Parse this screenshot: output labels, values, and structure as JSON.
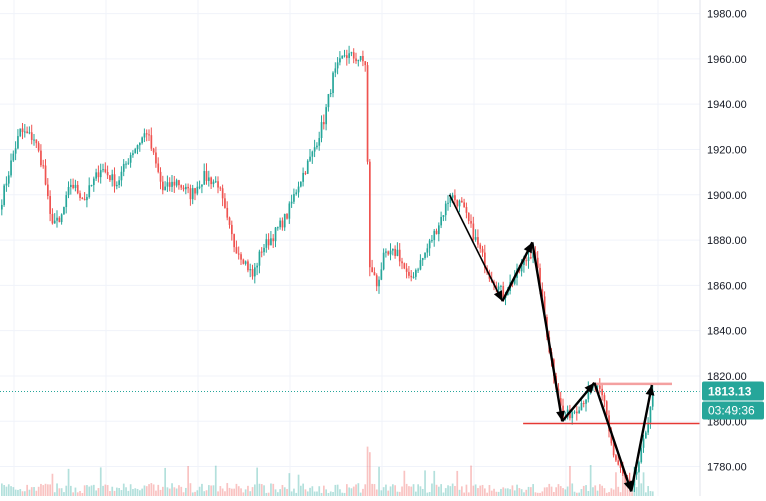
{
  "chart_data": {
    "type": "candlestick",
    "title": "",
    "xlabel": "",
    "ylabel": "",
    "ylim": [
      1767,
      1986
    ],
    "grid": true,
    "y_ticks": [
      1780,
      1800,
      1820,
      1840,
      1860,
      1880,
      1900,
      1920,
      1940,
      1960,
      1980
    ],
    "y_tick_labels": [
      "1780.00",
      "1800.00",
      "1820.00",
      "1840.00",
      "1860.00",
      "1880.00",
      "1900.00",
      "1920.00",
      "1940.00",
      "1960.00",
      "1980.00"
    ],
    "price_label": {
      "price": "1813.13",
      "countdown": "03:49:36",
      "value": 1813.13
    },
    "horizontal_lines": [
      {
        "name": "resistance-line",
        "value": 1816.5,
        "color": "#f4a0a0"
      },
      {
        "name": "support-line",
        "value": 1799,
        "color": "#e53935"
      }
    ],
    "key_levels": [
      {
        "name": "start",
        "index": 195,
        "price": 1900
      },
      {
        "name": "swing-low-1",
        "index": 218,
        "price": 1853
      },
      {
        "name": "swing-high-1",
        "index": 231,
        "price": 1879
      },
      {
        "name": "swing-low-2",
        "index": 244,
        "price": 1800
      },
      {
        "name": "swing-high-2",
        "index": 258,
        "price": 1817
      },
      {
        "name": "swing-low-3",
        "index": 274,
        "price": 1769
      },
      {
        "name": "swing-high-3",
        "index": 283,
        "price": 1816
      }
    ],
    "colors": {
      "up": "#26a69a",
      "down": "#ef5350",
      "grid": "#f0f3fa",
      "axis_text": "#131722",
      "price_badge": "#26a69a",
      "arrow": "#000000"
    }
  }
}
